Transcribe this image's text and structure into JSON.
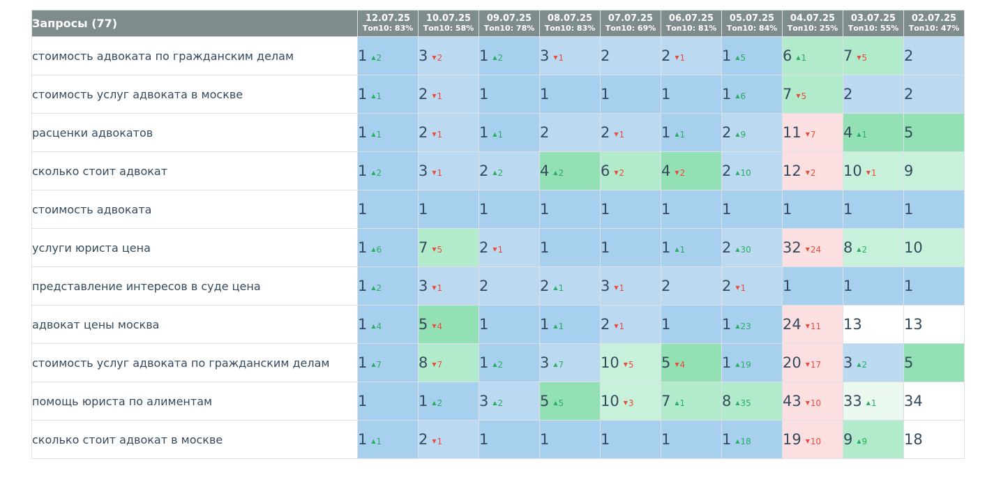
{
  "header": {
    "query_title": "Запросы (77)"
  },
  "dates": [
    {
      "date": "12.07.25",
      "top10": "Топ10: 83%"
    },
    {
      "date": "10.07.25",
      "top10": "Топ10: 58%"
    },
    {
      "date": "09.07.25",
      "top10": "Топ10: 78%"
    },
    {
      "date": "08.07.25",
      "top10": "Топ10: 83%"
    },
    {
      "date": "07.07.25",
      "top10": "Топ10: 69%"
    },
    {
      "date": "06.07.25",
      "top10": "Топ10: 81%"
    },
    {
      "date": "05.07.25",
      "top10": "Топ10: 84%"
    },
    {
      "date": "04.07.25",
      "top10": "Топ10: 25%"
    },
    {
      "date": "03.07.25",
      "top10": "Топ10: 55%"
    },
    {
      "date": "02.07.25",
      "top10": "Топ10: 47%"
    }
  ],
  "colors": {
    "header_bg": "#7f8c8d",
    "blue": "#a7cfee",
    "light_blue": "#bbd9f1",
    "green": "#94e0b5",
    "light_green": "#b1ebcb",
    "pale_green": "#c8f1db",
    "very_pale_green": "#eaf8f0",
    "pink": "#fbdfe1",
    "white": "#ffffff",
    "up": "#27ae60",
    "down": "#e74c3c"
  },
  "rows": [
    {
      "query": "стоимость адвоката по гражданским делам",
      "cells": [
        {
          "pos": "1",
          "chg": "2",
          "dir": "up",
          "color": "blue"
        },
        {
          "pos": "3",
          "chg": "2",
          "dir": "down",
          "color": "light_blue"
        },
        {
          "pos": "1",
          "chg": "2",
          "dir": "up",
          "color": "blue"
        },
        {
          "pos": "3",
          "chg": "1",
          "dir": "down",
          "color": "light_blue"
        },
        {
          "pos": "2",
          "chg": "",
          "dir": "",
          "color": "light_blue"
        },
        {
          "pos": "2",
          "chg": "1",
          "dir": "down",
          "color": "light_blue"
        },
        {
          "pos": "1",
          "chg": "5",
          "dir": "up",
          "color": "blue"
        },
        {
          "pos": "6",
          "chg": "1",
          "dir": "up",
          "color": "light_green"
        },
        {
          "pos": "7",
          "chg": "5",
          "dir": "down",
          "color": "light_green"
        },
        {
          "pos": "2",
          "chg": "",
          "dir": "",
          "color": "light_blue"
        }
      ]
    },
    {
      "query": "стоимость услуг адвоката в москве",
      "cells": [
        {
          "pos": "1",
          "chg": "1",
          "dir": "up",
          "color": "blue"
        },
        {
          "pos": "2",
          "chg": "1",
          "dir": "down",
          "color": "light_blue"
        },
        {
          "pos": "1",
          "chg": "",
          "dir": "",
          "color": "blue"
        },
        {
          "pos": "1",
          "chg": "",
          "dir": "",
          "color": "blue"
        },
        {
          "pos": "1",
          "chg": "",
          "dir": "",
          "color": "blue"
        },
        {
          "pos": "1",
          "chg": "",
          "dir": "",
          "color": "blue"
        },
        {
          "pos": "1",
          "chg": "6",
          "dir": "up",
          "color": "blue"
        },
        {
          "pos": "7",
          "chg": "5",
          "dir": "down",
          "color": "light_green"
        },
        {
          "pos": "2",
          "chg": "",
          "dir": "",
          "color": "light_blue"
        },
        {
          "pos": "2",
          "chg": "",
          "dir": "",
          "color": "light_blue"
        }
      ]
    },
    {
      "query": "расценки адвокатов",
      "cells": [
        {
          "pos": "1",
          "chg": "1",
          "dir": "up",
          "color": "blue"
        },
        {
          "pos": "2",
          "chg": "1",
          "dir": "down",
          "color": "light_blue"
        },
        {
          "pos": "1",
          "chg": "1",
          "dir": "up",
          "color": "blue"
        },
        {
          "pos": "2",
          "chg": "",
          "dir": "",
          "color": "light_blue"
        },
        {
          "pos": "2",
          "chg": "1",
          "dir": "down",
          "color": "light_blue"
        },
        {
          "pos": "1",
          "chg": "1",
          "dir": "up",
          "color": "blue"
        },
        {
          "pos": "2",
          "chg": "9",
          "dir": "up",
          "color": "light_blue"
        },
        {
          "pos": "11",
          "chg": "7",
          "dir": "down",
          "color": "pink"
        },
        {
          "pos": "4",
          "chg": "1",
          "dir": "up",
          "color": "green"
        },
        {
          "pos": "5",
          "chg": "",
          "dir": "",
          "color": "green"
        }
      ]
    },
    {
      "query": "сколько стоит адвокат",
      "cells": [
        {
          "pos": "1",
          "chg": "2",
          "dir": "up",
          "color": "blue"
        },
        {
          "pos": "3",
          "chg": "1",
          "dir": "down",
          "color": "light_blue"
        },
        {
          "pos": "2",
          "chg": "2",
          "dir": "up",
          "color": "light_blue"
        },
        {
          "pos": "4",
          "chg": "2",
          "dir": "up",
          "color": "green"
        },
        {
          "pos": "6",
          "chg": "2",
          "dir": "down",
          "color": "light_green"
        },
        {
          "pos": "4",
          "chg": "2",
          "dir": "down",
          "color": "green"
        },
        {
          "pos": "2",
          "chg": "10",
          "dir": "up",
          "color": "light_blue"
        },
        {
          "pos": "12",
          "chg": "2",
          "dir": "down",
          "color": "pink"
        },
        {
          "pos": "10",
          "chg": "1",
          "dir": "down",
          "color": "pale_green"
        },
        {
          "pos": "9",
          "chg": "",
          "dir": "",
          "color": "pale_green"
        }
      ]
    },
    {
      "query": "стоимость адвоката",
      "cells": [
        {
          "pos": "1",
          "chg": "",
          "dir": "",
          "color": "blue"
        },
        {
          "pos": "1",
          "chg": "",
          "dir": "",
          "color": "blue"
        },
        {
          "pos": "1",
          "chg": "",
          "dir": "",
          "color": "blue"
        },
        {
          "pos": "1",
          "chg": "",
          "dir": "",
          "color": "blue"
        },
        {
          "pos": "1",
          "chg": "",
          "dir": "",
          "color": "blue"
        },
        {
          "pos": "1",
          "chg": "",
          "dir": "",
          "color": "blue"
        },
        {
          "pos": "1",
          "chg": "",
          "dir": "",
          "color": "blue"
        },
        {
          "pos": "1",
          "chg": "",
          "dir": "",
          "color": "blue"
        },
        {
          "pos": "1",
          "chg": "",
          "dir": "",
          "color": "blue"
        },
        {
          "pos": "1",
          "chg": "",
          "dir": "",
          "color": "blue"
        }
      ]
    },
    {
      "query": "услуги юриста цена",
      "cells": [
        {
          "pos": "1",
          "chg": "6",
          "dir": "up",
          "color": "blue"
        },
        {
          "pos": "7",
          "chg": "5",
          "dir": "down",
          "color": "light_green"
        },
        {
          "pos": "2",
          "chg": "1",
          "dir": "down",
          "color": "light_blue"
        },
        {
          "pos": "1",
          "chg": "",
          "dir": "",
          "color": "blue"
        },
        {
          "pos": "1",
          "chg": "",
          "dir": "",
          "color": "blue"
        },
        {
          "pos": "1",
          "chg": "1",
          "dir": "up",
          "color": "blue"
        },
        {
          "pos": "2",
          "chg": "30",
          "dir": "up",
          "color": "light_blue"
        },
        {
          "pos": "32",
          "chg": "24",
          "dir": "down",
          "color": "pink"
        },
        {
          "pos": "8",
          "chg": "2",
          "dir": "up",
          "color": "pale_green"
        },
        {
          "pos": "10",
          "chg": "",
          "dir": "",
          "color": "pale_green"
        }
      ]
    },
    {
      "query": "представление интересов в суде цена",
      "cells": [
        {
          "pos": "1",
          "chg": "2",
          "dir": "up",
          "color": "blue"
        },
        {
          "pos": "3",
          "chg": "1",
          "dir": "down",
          "color": "light_blue"
        },
        {
          "pos": "2",
          "chg": "",
          "dir": "",
          "color": "light_blue"
        },
        {
          "pos": "2",
          "chg": "1",
          "dir": "up",
          "color": "light_blue"
        },
        {
          "pos": "3",
          "chg": "1",
          "dir": "down",
          "color": "light_blue"
        },
        {
          "pos": "2",
          "chg": "",
          "dir": "",
          "color": "light_blue"
        },
        {
          "pos": "2",
          "chg": "1",
          "dir": "down",
          "color": "light_blue"
        },
        {
          "pos": "1",
          "chg": "",
          "dir": "",
          "color": "blue"
        },
        {
          "pos": "1",
          "chg": "",
          "dir": "",
          "color": "blue"
        },
        {
          "pos": "1",
          "chg": "",
          "dir": "",
          "color": "blue"
        }
      ]
    },
    {
      "query": "адвокат цены москва",
      "cells": [
        {
          "pos": "1",
          "chg": "4",
          "dir": "up",
          "color": "blue"
        },
        {
          "pos": "5",
          "chg": "4",
          "dir": "down",
          "color": "green"
        },
        {
          "pos": "1",
          "chg": "",
          "dir": "",
          "color": "blue"
        },
        {
          "pos": "1",
          "chg": "1",
          "dir": "up",
          "color": "blue"
        },
        {
          "pos": "2",
          "chg": "1",
          "dir": "down",
          "color": "light_blue"
        },
        {
          "pos": "1",
          "chg": "",
          "dir": "",
          "color": "blue"
        },
        {
          "pos": "1",
          "chg": "23",
          "dir": "up",
          "color": "blue"
        },
        {
          "pos": "24",
          "chg": "11",
          "dir": "down",
          "color": "pink"
        },
        {
          "pos": "13",
          "chg": "",
          "dir": "",
          "color": "white"
        },
        {
          "pos": "13",
          "chg": "",
          "dir": "",
          "color": "white"
        }
      ]
    },
    {
      "query": "стоимость услуг адвоката по гражданским делам",
      "cells": [
        {
          "pos": "1",
          "chg": "7",
          "dir": "up",
          "color": "blue"
        },
        {
          "pos": "8",
          "chg": "7",
          "dir": "down",
          "color": "light_green"
        },
        {
          "pos": "1",
          "chg": "2",
          "dir": "up",
          "color": "blue"
        },
        {
          "pos": "3",
          "chg": "7",
          "dir": "up",
          "color": "light_blue"
        },
        {
          "pos": "10",
          "chg": "5",
          "dir": "down",
          "color": "pale_green"
        },
        {
          "pos": "5",
          "chg": "4",
          "dir": "down",
          "color": "green"
        },
        {
          "pos": "1",
          "chg": "19",
          "dir": "up",
          "color": "blue"
        },
        {
          "pos": "20",
          "chg": "17",
          "dir": "down",
          "color": "pink"
        },
        {
          "pos": "3",
          "chg": "2",
          "dir": "up",
          "color": "light_blue"
        },
        {
          "pos": "5",
          "chg": "",
          "dir": "",
          "color": "green"
        }
      ]
    },
    {
      "query": "помощь юриста по алиментам",
      "cells": [
        {
          "pos": "1",
          "chg": "",
          "dir": "",
          "color": "blue"
        },
        {
          "pos": "1",
          "chg": "2",
          "dir": "up",
          "color": "blue"
        },
        {
          "pos": "3",
          "chg": "2",
          "dir": "up",
          "color": "light_blue"
        },
        {
          "pos": "5",
          "chg": "5",
          "dir": "up",
          "color": "green"
        },
        {
          "pos": "10",
          "chg": "3",
          "dir": "down",
          "color": "pale_green"
        },
        {
          "pos": "7",
          "chg": "1",
          "dir": "up",
          "color": "light_green"
        },
        {
          "pos": "8",
          "chg": "35",
          "dir": "up",
          "color": "light_green"
        },
        {
          "pos": "43",
          "chg": "10",
          "dir": "down",
          "color": "pink"
        },
        {
          "pos": "33",
          "chg": "1",
          "dir": "up",
          "color": "very_pale_green"
        },
        {
          "pos": "34",
          "chg": "",
          "dir": "",
          "color": "white"
        }
      ]
    },
    {
      "query": "сколько стоит адвокат в москве",
      "cells": [
        {
          "pos": "1",
          "chg": "1",
          "dir": "up",
          "color": "blue"
        },
        {
          "pos": "2",
          "chg": "1",
          "dir": "down",
          "color": "light_blue"
        },
        {
          "pos": "1",
          "chg": "",
          "dir": "",
          "color": "blue"
        },
        {
          "pos": "1",
          "chg": "",
          "dir": "",
          "color": "blue"
        },
        {
          "pos": "1",
          "chg": "",
          "dir": "",
          "color": "blue"
        },
        {
          "pos": "1",
          "chg": "",
          "dir": "",
          "color": "blue"
        },
        {
          "pos": "1",
          "chg": "18",
          "dir": "up",
          "color": "blue"
        },
        {
          "pos": "19",
          "chg": "10",
          "dir": "down",
          "color": "pink"
        },
        {
          "pos": "9",
          "chg": "9",
          "dir": "up",
          "color": "light_green"
        },
        {
          "pos": "18",
          "chg": "",
          "dir": "",
          "color": "white"
        }
      ]
    }
  ]
}
